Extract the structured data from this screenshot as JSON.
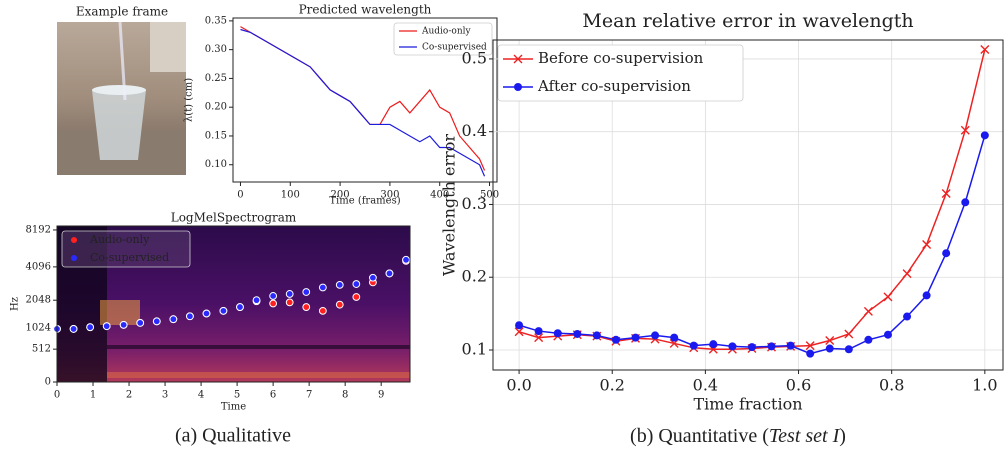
{
  "example_frame": {
    "title": "Example frame"
  },
  "chart_data": [
    {
      "type": "line",
      "title": "Predicted wavelength",
      "xlabel": "Time (frames)",
      "ylabel": "λ(t) (cm)",
      "x": [
        0,
        20,
        40,
        60,
        80,
        100,
        120,
        140,
        160,
        180,
        200,
        220,
        240,
        260,
        280,
        300,
        320,
        340,
        360,
        380,
        400,
        420,
        440,
        460,
        480,
        490
      ],
      "series": [
        {
          "name": "Audio-only",
          "color": "#ee1c1c",
          "values": [
            0.34,
            0.33,
            0.32,
            0.31,
            0.3,
            0.29,
            0.28,
            0.27,
            0.25,
            0.23,
            0.22,
            0.21,
            0.19,
            0.17,
            0.17,
            0.2,
            0.21,
            0.19,
            0.21,
            0.23,
            0.2,
            0.19,
            0.15,
            0.13,
            0.11,
            0.09
          ]
        },
        {
          "name": "Co-supervised",
          "color": "#1c1cdd",
          "values": [
            0.335,
            0.33,
            0.32,
            0.31,
            0.3,
            0.29,
            0.28,
            0.27,
            0.25,
            0.23,
            0.22,
            0.21,
            0.19,
            0.17,
            0.17,
            0.17,
            0.16,
            0.15,
            0.14,
            0.15,
            0.13,
            0.13,
            0.12,
            0.11,
            0.1,
            0.08
          ]
        }
      ],
      "xlim": [
        -15,
        515
      ],
      "xticks": [
        0,
        100,
        200,
        300,
        400,
        500
      ],
      "ylim": [
        0.07,
        0.355
      ],
      "yticks": [
        {
          "value": 0.1,
          "label": "0.10"
        },
        0.15,
        {
          "value": 0.2,
          "label": "0.20"
        },
        0.25,
        {
          "value": 0.3,
          "label": "0.30"
        },
        0.35
      ],
      "grid": false,
      "legend": "upper right"
    },
    {
      "type": "scatter",
      "title": "LogMelSpectrogram",
      "xlabel": "Time",
      "ylabel": "Hz",
      "yscale": "mel",
      "x": [
        0,
        0.46,
        0.92,
        1.38,
        1.85,
        2.31,
        2.77,
        3.23,
        3.69,
        4.15,
        4.62,
        5.08,
        5.54,
        6.0,
        6.46,
        6.92,
        7.38,
        7.85,
        8.31,
        8.77,
        9.23,
        9.69
      ],
      "series": [
        {
          "name": "Audio-only",
          "color": "#ff2020",
          "values": [
            1000,
            1000,
            1050,
            1080,
            1120,
            1180,
            1230,
            1300,
            1400,
            1500,
            1600,
            1750,
            2000,
            1900,
            1950,
            1750,
            1600,
            1850,
            2200,
            3000,
            3600,
            4600
          ]
        },
        {
          "name": "Co-supervised",
          "color": "#2a2aff",
          "values": [
            1000,
            1000,
            1050,
            1080,
            1120,
            1180,
            1230,
            1300,
            1400,
            1500,
            1600,
            1750,
            2050,
            2250,
            2350,
            2450,
            2700,
            2850,
            2900,
            3300,
            3600,
            4700
          ]
        }
      ],
      "xlim": [
        0,
        9.8
      ],
      "xticks": [
        0,
        1,
        2,
        3,
        4,
        5,
        6,
        7,
        8,
        9
      ],
      "ylim": [
        0,
        8800
      ],
      "yticks": [
        0,
        512,
        1024,
        2048,
        4096,
        8192
      ],
      "grid": false,
      "legend": "upper left"
    },
    {
      "type": "line",
      "title": "Mean relative error in wavelength",
      "xlabel": "Time fraction",
      "ylabel": "Wavelength error",
      "x": [
        0,
        0.042,
        0.083,
        0.125,
        0.167,
        0.208,
        0.25,
        0.292,
        0.333,
        0.375,
        0.417,
        0.458,
        0.5,
        0.542,
        0.583,
        0.625,
        0.667,
        0.708,
        0.75,
        0.792,
        0.833,
        0.875,
        0.917,
        0.958,
        1.0
      ],
      "series": [
        {
          "name": "Before co-supervision",
          "color": "#ee2222",
          "marker": "x",
          "values": [
            0.125,
            0.117,
            0.119,
            0.121,
            0.119,
            0.112,
            0.116,
            0.115,
            0.109,
            0.103,
            0.101,
            0.101,
            0.102,
            0.104,
            0.105,
            0.106,
            0.113,
            0.122,
            0.153,
            0.173,
            0.205,
            0.245,
            0.315,
            0.402,
            0.513
          ]
        },
        {
          "name": "After co-supervision",
          "color": "#1a1aee",
          "marker": "o",
          "values": [
            0.134,
            0.126,
            0.123,
            0.122,
            0.12,
            0.114,
            0.117,
            0.12,
            0.117,
            0.106,
            0.108,
            0.105,
            0.104,
            0.105,
            0.106,
            0.095,
            0.102,
            0.101,
            0.114,
            0.121,
            0.146,
            0.175,
            0.233,
            0.303,
            0.395
          ]
        }
      ],
      "xlim": [
        -0.056,
        1.039
      ],
      "xticks": [
        {
          "value": 0,
          "label": "0.0"
        },
        0.2,
        0.4,
        0.6,
        0.8,
        {
          "value": 1,
          "label": "1.0"
        }
      ],
      "ylim": [
        0.0725,
        0.526
      ],
      "yticks": [
        0.1,
        0.2,
        0.3,
        0.4,
        0.5
      ],
      "grid": true,
      "legend": "upper left"
    }
  ],
  "captions": {
    "a": "(a) Qualitative",
    "b": [
      "(b) Quantitative (",
      "Test set I",
      ")"
    ]
  }
}
